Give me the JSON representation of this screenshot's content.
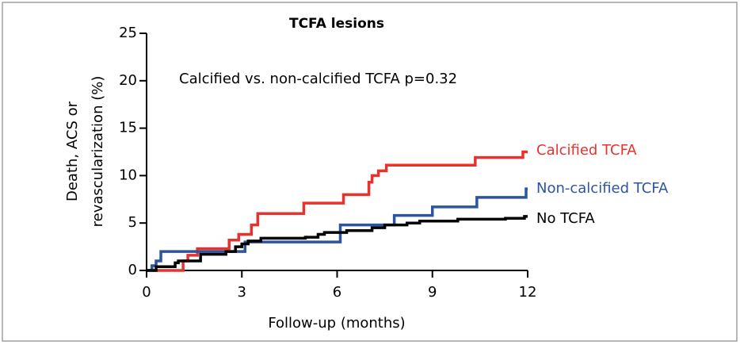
{
  "chart_data": {
    "type": "line",
    "step": true,
    "title": "TCFA lesions",
    "annotation": "Calcified vs. non-calcified TCFA p=0.32",
    "xlabel": "Follow-up (months)",
    "ylabel": [
      "Death, ACS or",
      "revascularization (%)"
    ],
    "xlim": [
      0,
      12
    ],
    "xticks": [
      0,
      3,
      6,
      9,
      12
    ],
    "ylim": [
      0,
      25
    ],
    "yticks": [
      0,
      5,
      10,
      15,
      20,
      25
    ],
    "series": [
      {
        "name": "Calcified TCFA",
        "color": "#e8322e",
        "x": [
          0,
          1.15,
          1.3,
          1.6,
          2.6,
          2.9,
          3.3,
          3.5,
          4.95,
          6.2,
          7.0,
          7.1,
          7.3,
          7.55,
          10.35,
          11.85,
          12
        ],
        "values": [
          0,
          1.0,
          1.6,
          2.3,
          3.2,
          3.8,
          4.8,
          6.0,
          7.1,
          8.0,
          9.3,
          10.0,
          10.5,
          11.1,
          11.9,
          12.5,
          12.5
        ]
      },
      {
        "name": "Non-calcified TCFA",
        "color": "#2b55a3",
        "x": [
          0,
          0.17,
          0.3,
          0.45,
          3.1,
          6.1,
          7.8,
          9.0,
          10.4,
          11.95,
          12
        ],
        "values": [
          0,
          0.5,
          1.0,
          2.0,
          3.0,
          4.8,
          5.8,
          6.7,
          7.7,
          8.6,
          8.6
        ]
      },
      {
        "name": "No TCFA",
        "color": "#000000",
        "x": [
          0,
          0.3,
          0.9,
          1.0,
          1.7,
          2.5,
          2.8,
          3.0,
          3.2,
          3.6,
          5.0,
          5.4,
          5.6,
          6.3,
          7.1,
          7.5,
          8.2,
          8.6,
          9.8,
          11.3,
          11.9,
          12
        ],
        "values": [
          0,
          0.4,
          0.8,
          1.0,
          1.7,
          2.0,
          2.5,
          2.8,
          3.1,
          3.4,
          3.5,
          3.8,
          4.0,
          4.2,
          4.5,
          4.8,
          5.0,
          5.2,
          5.4,
          5.5,
          5.7,
          5.7
        ]
      }
    ]
  }
}
